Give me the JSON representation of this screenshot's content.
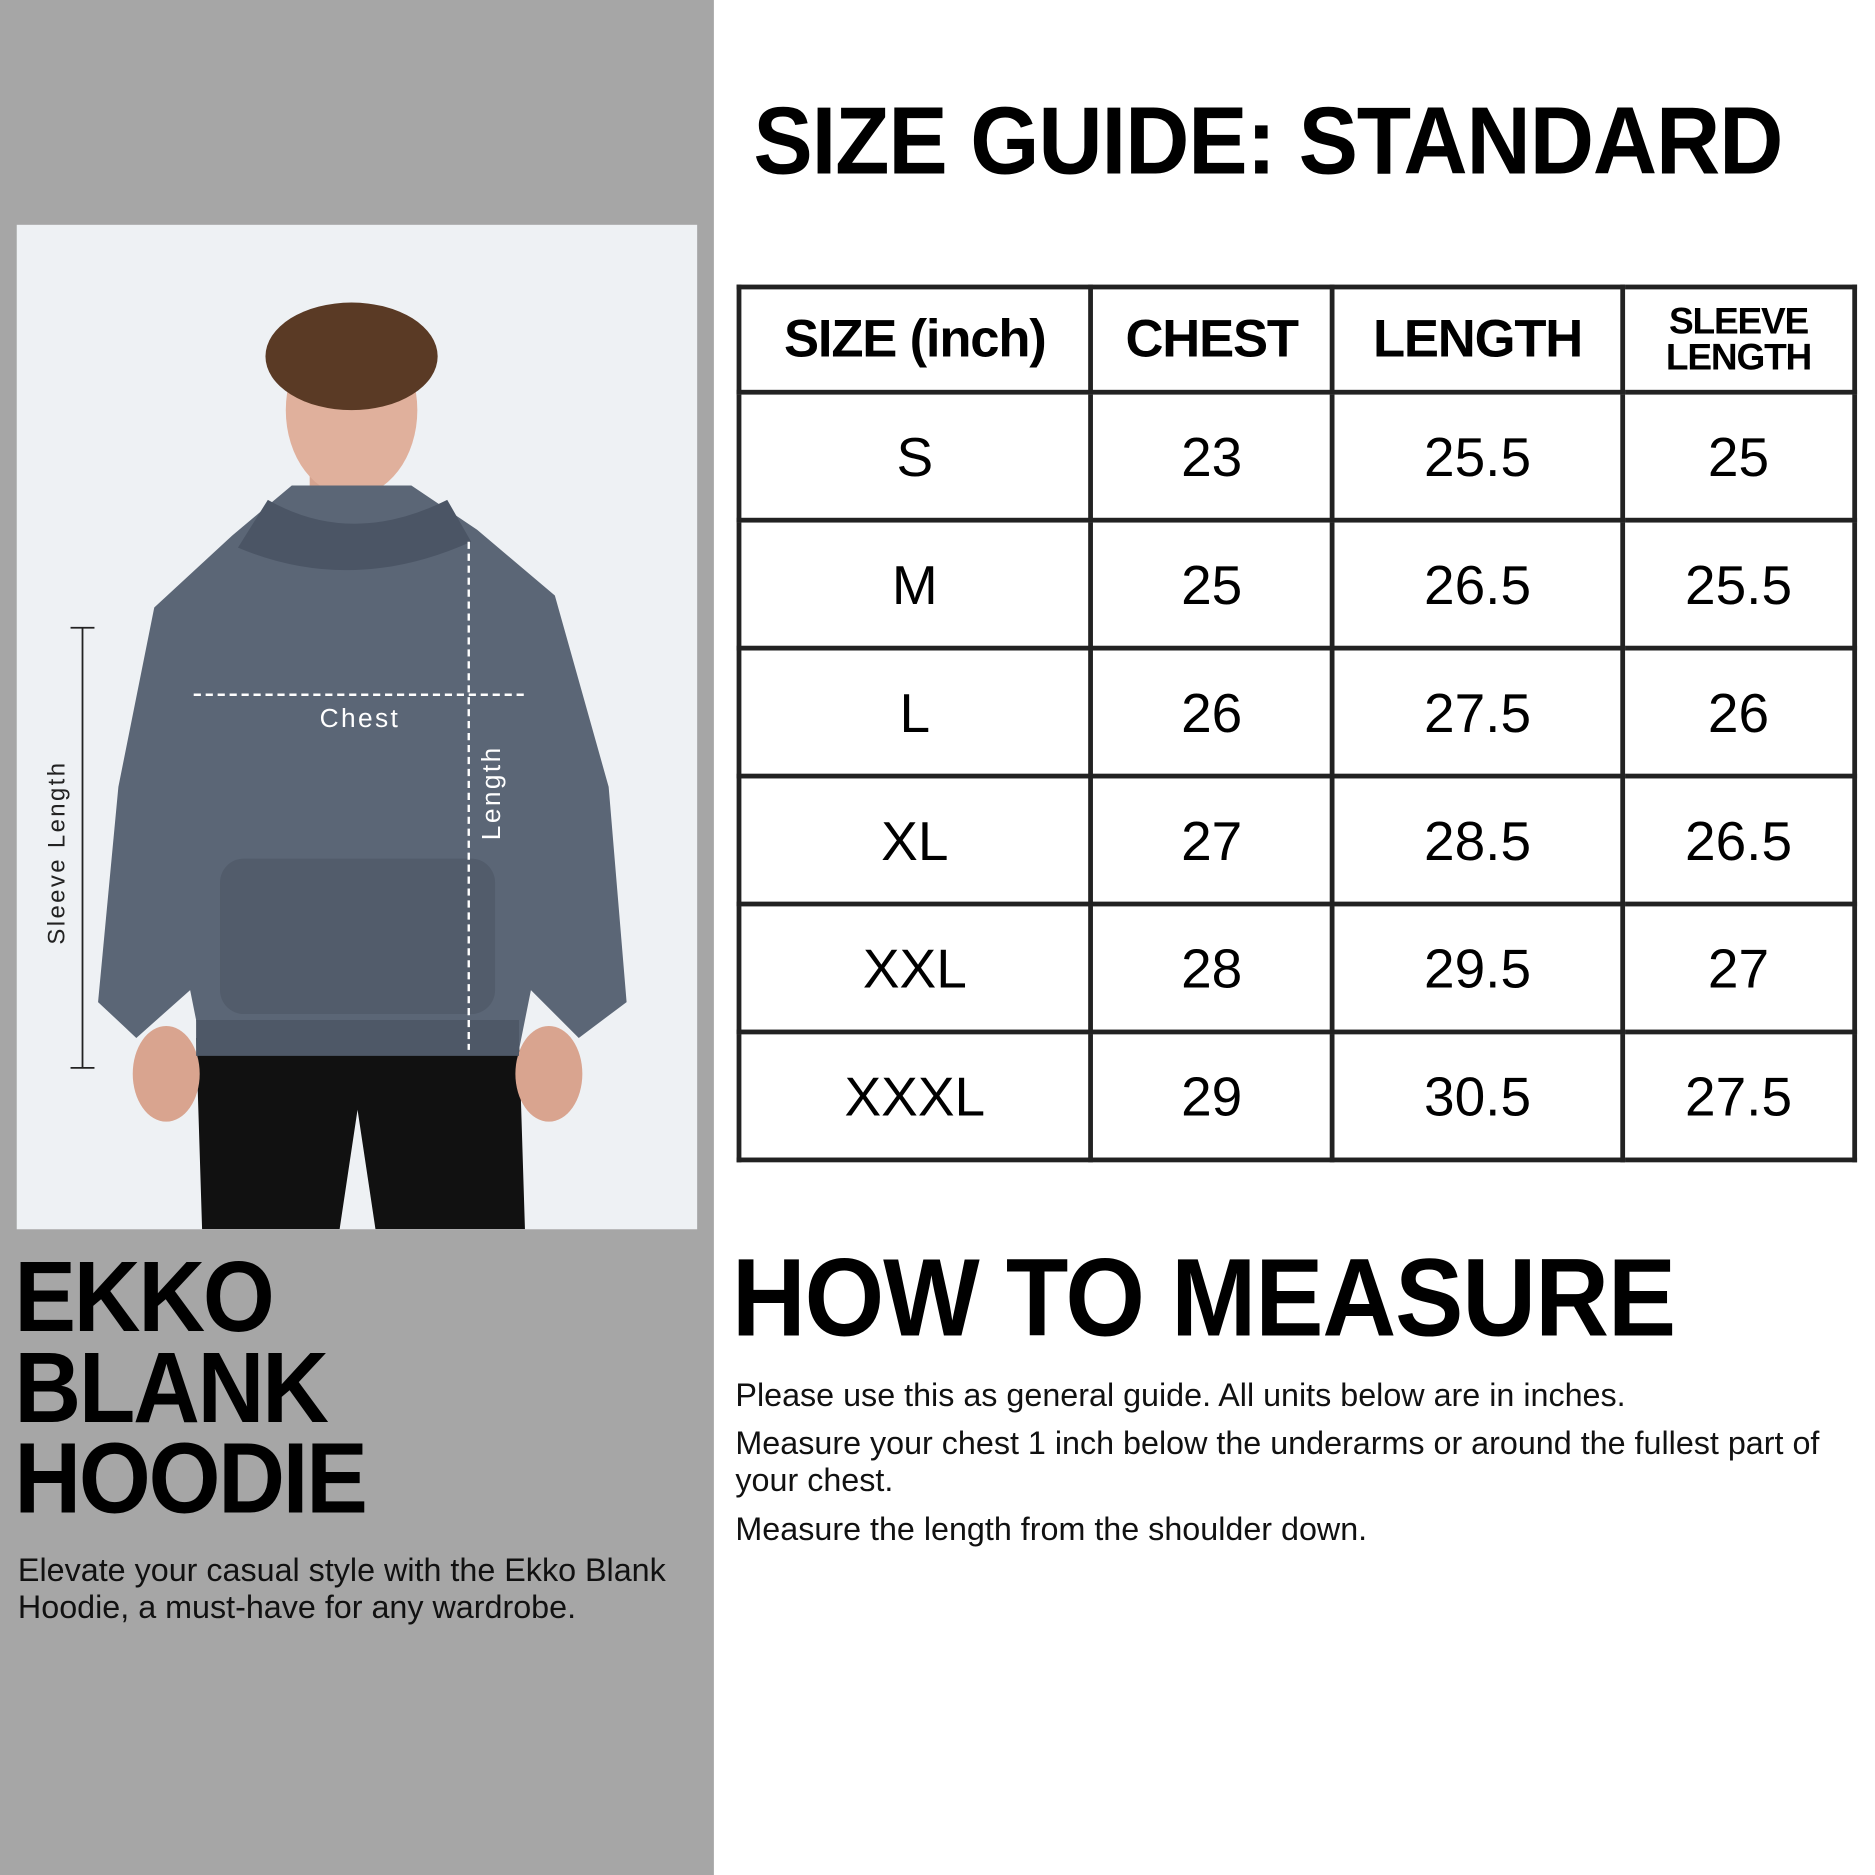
{
  "product": {
    "title_lines": [
      "EKKO",
      "BLANK",
      "HOODIE"
    ],
    "description": "Elevate your casual style with the Ekko Blank Hoodie, a must-have for any wardrobe.",
    "photo_labels": {
      "chest": "Chest",
      "length": "Length",
      "sleeve": "Sleeve Length"
    }
  },
  "guide": {
    "title": "SIZE GUIDE: STANDARD",
    "headers": [
      "SIZE (inch)",
      "CHEST",
      "LENGTH",
      "SLEEVE LENGTH"
    ],
    "rows": [
      [
        "S",
        "23",
        "25.5",
        "25"
      ],
      [
        "M",
        "25",
        "26.5",
        "25.5"
      ],
      [
        "L",
        "26",
        "27.5",
        "26"
      ],
      [
        "XL",
        "27",
        "28.5",
        "26.5"
      ],
      [
        "XXL",
        "28",
        "29.5",
        "27"
      ],
      [
        "XXXL",
        "29",
        "30.5",
        "27.5"
      ]
    ]
  },
  "measure": {
    "title": "HOW TO MEASURE",
    "paragraphs": [
      "Please use this as general guide. All units below are in inches.",
      "Measure your chest 1 inch below the underarms or around the fullest part of your chest.",
      "Measure the length from the shoulder down."
    ]
  },
  "colors": {
    "panel": "#a6a6a6",
    "hoodie": "#5b6676",
    "text": "#000000"
  }
}
